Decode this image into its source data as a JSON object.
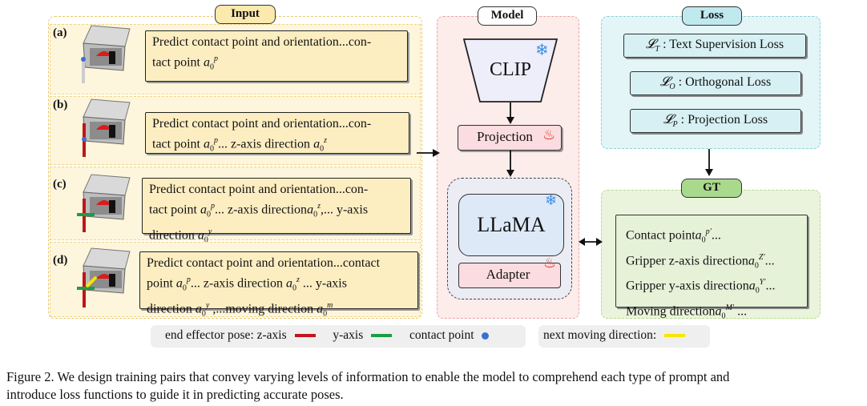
{
  "sections": {
    "input": "Input",
    "model": "Model",
    "loss": "Loss",
    "gt": "GT"
  },
  "rows": [
    {
      "label": "(a)",
      "line1": "Predict contact point and orientation...con-",
      "line2": "tact point "
    },
    {
      "label": "(b)",
      "line1": "Predict contact point and orientation...con-",
      "line2a": "tact point ",
      "line2b": "... z-axis direction "
    },
    {
      "label": "(c)",
      "line1": "Predict contact point and orientation...con-",
      "line2a": "tact point ",
      "line2b": "... z-axis direction",
      "line2c": ",... y-axis",
      "line3": "direction "
    },
    {
      "label": "(d)",
      "line1": "Predict contact point and orientation...contact",
      "line2a": "point ",
      "line2b": "... z-axis direction ",
      "line2c": " ... y-axis",
      "line3a": "direction ",
      "line3b": " ,...moving direction "
    }
  ],
  "model": {
    "clip": "CLIP",
    "projection": "Projection",
    "llama": "LLaMA",
    "adapter": "Adapter"
  },
  "loss": {
    "items": [
      {
        "sub": "T",
        "text": ": Text Supervision Loss"
      },
      {
        "sub": "O",
        "text": ": Orthogonal Loss"
      },
      {
        "sub": "P",
        "text": ": Projection Loss"
      }
    ]
  },
  "gt": {
    "lines": [
      "Contact point",
      "Gripper z-axis direction",
      "Gripper y-axis direction",
      "Moving direction"
    ]
  },
  "legend": {
    "ee_pose": "end effector pose: z-axis",
    "y_axis": "y-axis",
    "contact_point": "contact point",
    "next_moving": "next moving direction:",
    "colors": {
      "z_axis": "#c0151b",
      "y_axis": "#1a9e45",
      "contact_point": "#3b6fd1",
      "moving": "#f6e600"
    }
  },
  "caption": {
    "line1": "Figure 2.  We design training pairs that convey varying levels of information to enable the model to comprehend each type of prompt and",
    "line2": "introduce loss functions to guide it in predicting accurate poses."
  }
}
